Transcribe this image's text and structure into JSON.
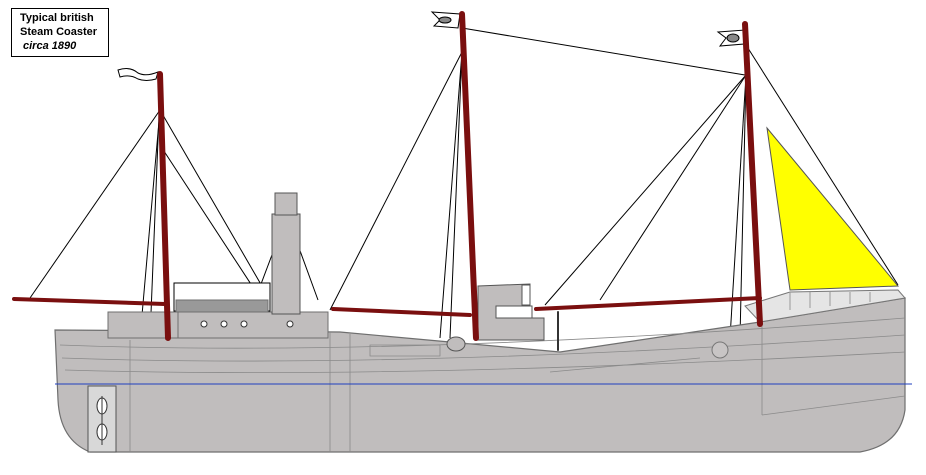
{
  "caption": {
    "line1": "Typical british",
    "line2": "Steam Coaster",
    "line3": "circa 1890"
  },
  "colors": {
    "hull": "#c0bdbd",
    "outline": "#6f6f6f",
    "mast": "#7a0f0f",
    "sail": "#ffff00",
    "waterline": "#1f3fbf",
    "rigging": "#000000"
  }
}
